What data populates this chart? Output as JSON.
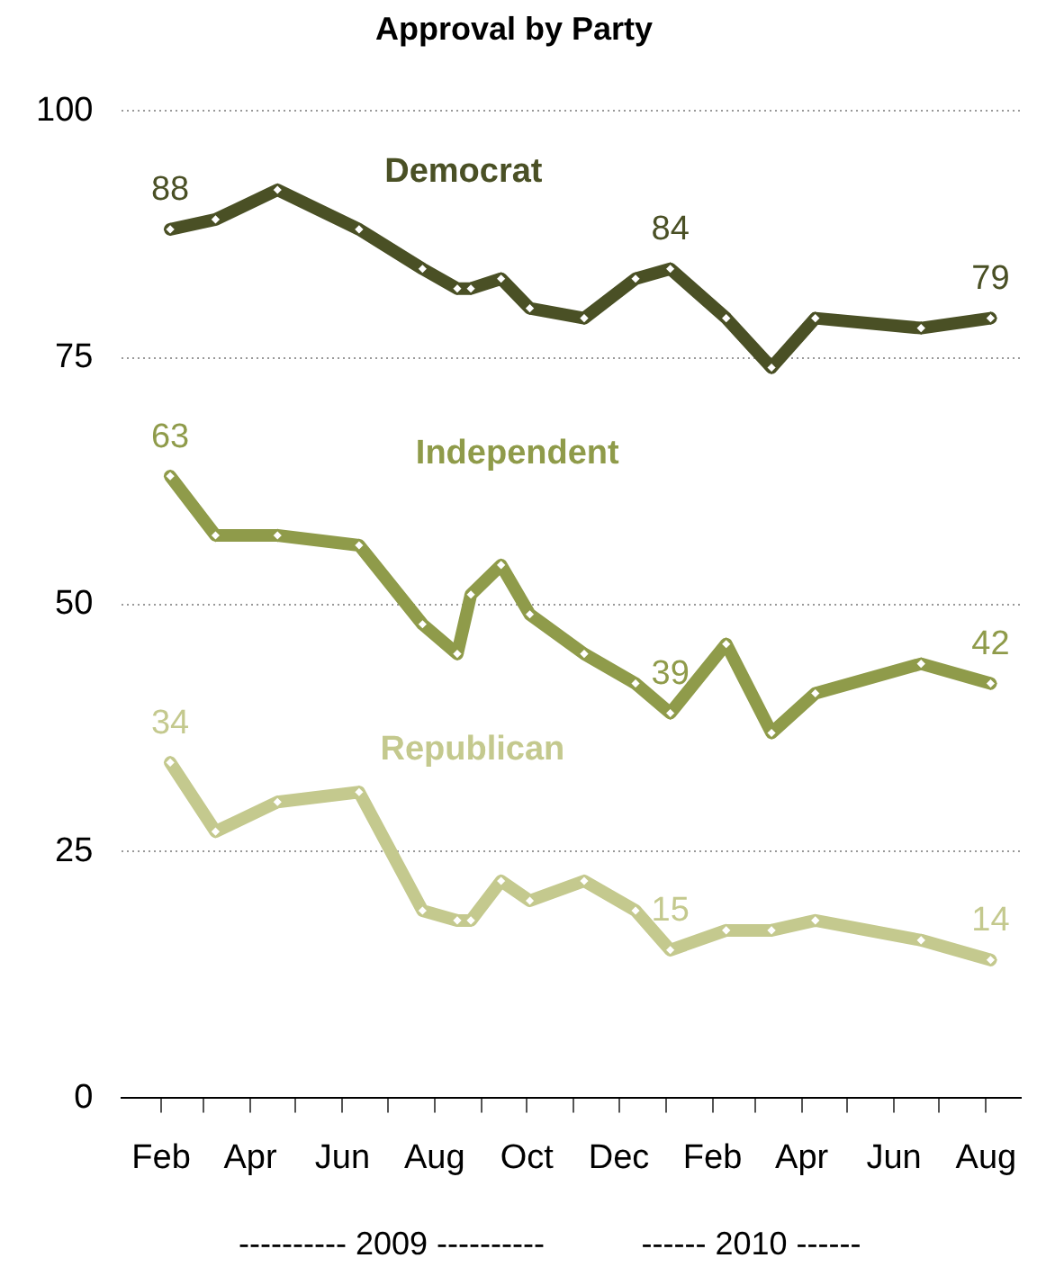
{
  "chart_data": {
    "type": "line",
    "title": "Approval by Party",
    "x": [
      "2009-02-07",
      "2009-03-09",
      "2009-04-19",
      "2009-06-12",
      "2009-07-24",
      "2009-08-16",
      "2009-08-25",
      "2009-09-14",
      "2009-10-03",
      "2009-11-08",
      "2009-12-12",
      "2010-01-04",
      "2010-02-10",
      "2010-03-12",
      "2010-04-10",
      "2010-06-19",
      "2010-08-04"
    ],
    "series": [
      {
        "name": "Democrat",
        "color": "#4a5025",
        "values": [
          88,
          89,
          92,
          88,
          84,
          82,
          82,
          83,
          80,
          79,
          83,
          84,
          79,
          74,
          79,
          78,
          79
        ],
        "value_labels": [
          "88",
          null,
          null,
          null,
          null,
          null,
          null,
          null,
          null,
          null,
          null,
          "84",
          null,
          null,
          null,
          null,
          "79"
        ]
      },
      {
        "name": "Independent",
        "color": "#8f9b4a",
        "values": [
          63,
          57,
          57,
          56,
          48,
          45,
          51,
          54,
          49,
          45,
          42,
          39,
          46,
          37,
          41,
          44,
          42
        ],
        "value_labels": [
          "63",
          null,
          null,
          null,
          null,
          null,
          null,
          null,
          null,
          null,
          null,
          "39",
          null,
          null,
          null,
          null,
          "42"
        ]
      },
      {
        "name": "Republican",
        "color": "#c4c98e",
        "values": [
          34,
          27,
          30,
          31,
          19,
          18,
          18,
          22,
          20,
          22,
          19,
          15,
          17,
          17,
          18,
          16,
          14
        ],
        "value_labels": [
          "34",
          null,
          null,
          null,
          null,
          null,
          null,
          null,
          null,
          null,
          null,
          "15",
          null,
          null,
          null,
          null,
          "14"
        ]
      }
    ],
    "xlim": [
      "2009-01-06",
      "2010-08-24"
    ],
    "xticks": [
      {
        "value": "2009-02",
        "label": "Feb"
      },
      {
        "value": "2009-03",
        "label": null
      },
      {
        "value": "2009-04",
        "label": "Apr"
      },
      {
        "value": "2009-05",
        "label": null
      },
      {
        "value": "2009-06",
        "label": "Jun"
      },
      {
        "value": "2009-07",
        "label": null
      },
      {
        "value": "2009-08",
        "label": "Aug"
      },
      {
        "value": "2009-09",
        "label": null
      },
      {
        "value": "2009-10",
        "label": "Oct"
      },
      {
        "value": "2009-11",
        "label": null
      },
      {
        "value": "2009-12",
        "label": "Dec"
      },
      {
        "value": "2010-01",
        "label": null
      },
      {
        "value": "2010-02",
        "label": "Feb"
      },
      {
        "value": "2010-03",
        "label": null
      },
      {
        "value": "2010-04",
        "label": "Apr"
      },
      {
        "value": "2010-05",
        "label": null
      },
      {
        "value": "2010-06",
        "label": "Jun"
      },
      {
        "value": "2010-07",
        "label": null
      },
      {
        "value": "2010-08",
        "label": "Aug"
      }
    ],
    "ylim": [
      0,
      100
    ],
    "yticks": [
      0,
      25,
      50,
      75,
      100
    ],
    "grid": "y",
    "legend": false,
    "marker": "diamond",
    "line_style": "solid",
    "annotations": [
      "---------- 2009 ----------",
      "------ 2010 ------"
    ]
  }
}
